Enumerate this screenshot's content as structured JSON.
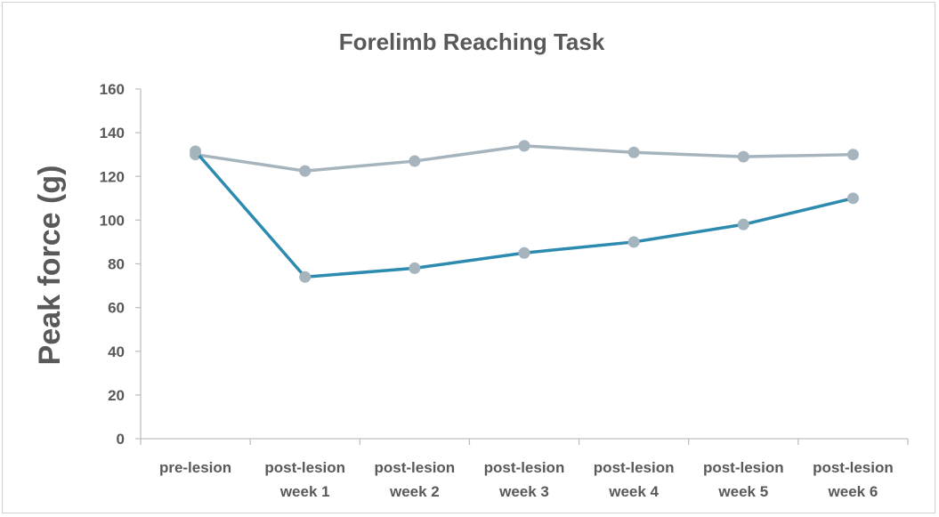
{
  "chart_data": {
    "type": "line",
    "title": "Forelimb Reaching Task",
    "xlabel": "",
    "ylabel": "Peak force (g)",
    "ylim": [
      0,
      160
    ],
    "yticks": [
      0,
      20,
      40,
      60,
      80,
      100,
      120,
      140,
      160
    ],
    "categories": [
      [
        "pre-lesion"
      ],
      [
        "post-lesion",
        "week 1"
      ],
      [
        "post-lesion",
        "week 2"
      ],
      [
        "post-lesion",
        "week 3"
      ],
      [
        "post-lesion",
        "week 4"
      ],
      [
        "post-lesion",
        "week 5"
      ],
      [
        "post-lesion",
        "week 6"
      ]
    ],
    "grid": false,
    "legend": "none",
    "series": [
      {
        "color": "#a6b5bd",
        "marker_color": "#a6b5bd",
        "values": [
          130,
          122.5,
          127,
          134,
          131,
          129,
          130
        ]
      },
      {
        "color": "#2e8bb0",
        "marker_color": "#a6b5bd",
        "values": [
          131.5,
          74,
          78,
          85,
          90,
          98,
          110
        ]
      }
    ]
  }
}
